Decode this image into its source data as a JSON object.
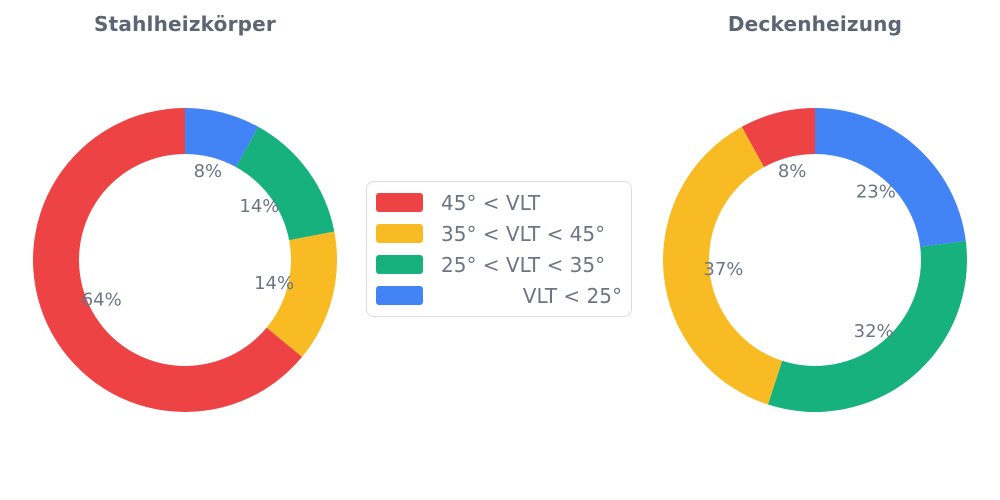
{
  "chart_data": [
    {
      "type": "pie",
      "title": "Stahlheizkörper",
      "labels": [
        "45° < VLT",
        "35° < VLT < 45°",
        "25° < VLT < 35°",
        "VLT < 25°"
      ],
      "values": [
        64,
        14,
        14,
        8
      ],
      "value_labels": [
        "64%",
        "14%",
        "14%",
        "8%"
      ],
      "colors": [
        "#EE4345",
        "#F9BB23",
        "#16B17D",
        "#4283F5"
      ],
      "hole": 0.7,
      "start_angle_deg": 0,
      "direction": "counterclockwise",
      "legend_position": "center-between-charts"
    },
    {
      "type": "pie",
      "title": "Deckenheizung",
      "labels": [
        "45° < VLT",
        "35° < VLT < 45°",
        "25° < VLT < 35°",
        "VLT < 25°"
      ],
      "values": [
        8,
        37,
        32,
        23
      ],
      "value_labels": [
        "8%",
        "37%",
        "32%",
        "23%"
      ],
      "colors": [
        "#EE4345",
        "#F9BB23",
        "#16B17D",
        "#4283F5"
      ],
      "hole": 0.7,
      "start_angle_deg": 0,
      "direction": "counterclockwise",
      "legend_position": "center-between-charts"
    }
  ],
  "legend": {
    "items": [
      {
        "label": "45° < VLT",
        "color": "#EE4345"
      },
      {
        "label": "35° < VLT < 45°",
        "color": "#F9BB23"
      },
      {
        "label": "25° < VLT < 35°",
        "color": "#16B17D"
      },
      {
        "label": "VLT < 25°",
        "color": "#4283F5"
      }
    ]
  },
  "style": {
    "title_color": "#5B6573",
    "label_color": "#6C7583",
    "background": "#ffffff",
    "legend_border": "#DADDE2"
  }
}
